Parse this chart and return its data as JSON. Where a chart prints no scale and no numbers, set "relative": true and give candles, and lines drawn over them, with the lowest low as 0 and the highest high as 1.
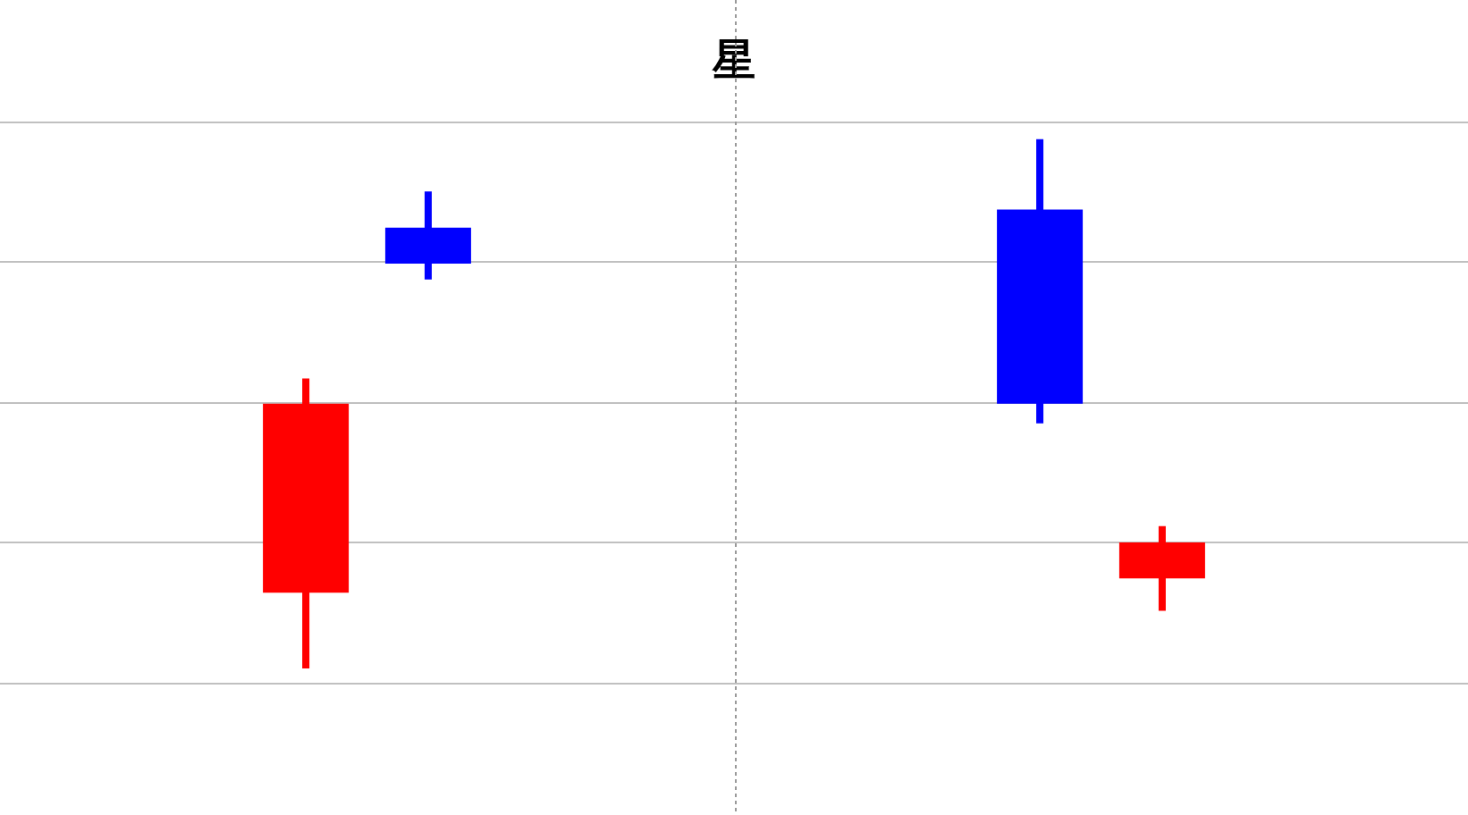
{
  "chart_data": {
    "type": "candlestick",
    "title": "星",
    "relative": true,
    "grid": true,
    "categories": [
      null,
      null,
      null,
      null,
      null,
      null,
      null,
      null,
      null,
      null,
      null,
      null
    ],
    "ohlc": [
      null,
      null,
      [
        0.143,
        0.548,
        0,
        0.5
      ],
      [
        0.833,
        0.901,
        0.735,
        0.765
      ],
      null,
      null,
      null,
      null,
      [
        0.867,
        1,
        0.463,
        0.5
      ],
      [
        0.17,
        0.269,
        0.109,
        0.238
      ],
      null,
      null
    ],
    "colors": [
      null,
      null,
      "#ff0000",
      "#0000ff",
      null,
      null,
      null,
      null,
      "#0000ff",
      "#ff0000",
      null,
      null
    ]
  }
}
